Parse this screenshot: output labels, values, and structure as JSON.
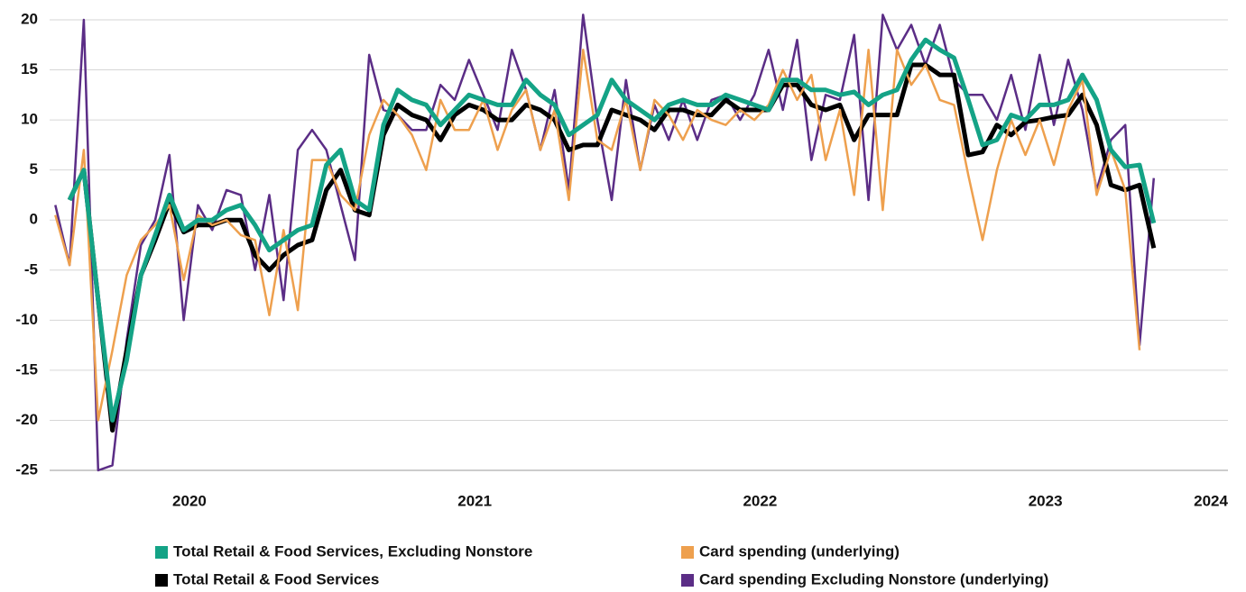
{
  "chart_data": {
    "type": "line",
    "x": [
      2020.03,
      2020.08,
      2020.13,
      2020.18,
      2020.23,
      2020.28,
      2020.33,
      2020.38,
      2020.43,
      2020.48,
      2020.53,
      2020.58,
      2020.63,
      2020.68,
      2020.73,
      2020.78,
      2020.83,
      2020.88,
      2020.93,
      2020.98,
      2021.03,
      2021.08,
      2021.13,
      2021.18,
      2021.23,
      2021.28,
      2021.33,
      2021.38,
      2021.43,
      2021.48,
      2021.53,
      2021.58,
      2021.63,
      2021.68,
      2021.73,
      2021.78,
      2021.83,
      2021.88,
      2021.93,
      2021.98,
      2022.03,
      2022.08,
      2022.13,
      2022.18,
      2022.23,
      2022.28,
      2022.33,
      2022.38,
      2022.43,
      2022.48,
      2022.53,
      2022.58,
      2022.63,
      2022.68,
      2022.73,
      2022.78,
      2022.83,
      2022.88,
      2022.93,
      2022.98,
      2023.03,
      2023.08,
      2023.13,
      2023.18,
      2023.23,
      2023.28,
      2023.33,
      2023.38,
      2023.43,
      2023.48,
      2023.53,
      2023.58,
      2023.63,
      2023.68,
      2023.73,
      2023.78,
      2023.83,
      2023.88
    ],
    "xlim": [
      2020.01,
      2024.14
    ],
    "xticks": [
      {
        "value": 2020.5,
        "label": "2020"
      },
      {
        "value": 2021.5,
        "label": "2021"
      },
      {
        "value": 2022.5,
        "label": "2022"
      },
      {
        "value": 2023.5,
        "label": "2023"
      },
      {
        "value": 2024.08,
        "label": "2024"
      }
    ],
    "ylim": [
      -25,
      20
    ],
    "yticks": [
      20,
      15,
      10,
      5,
      0,
      -5,
      -10,
      -15,
      -20,
      -25
    ],
    "grid": true,
    "series": [
      {
        "name": "Total Retail & Food Services, Excluding Nonstore",
        "color": "#14a386",
        "values": [
          null,
          2,
          5,
          -8,
          -20,
          -14,
          -5.5,
          -1.5,
          2.5,
          -1,
          0,
          0,
          1,
          1.5,
          -0.5,
          -3,
          -2,
          -1,
          -0.5,
          5.5,
          7,
          2,
          1,
          9.5,
          13,
          12,
          11.5,
          9.5,
          11,
          12.5,
          12,
          11.5,
          11.5,
          14,
          12.5,
          11.5,
          8.5,
          9.5,
          10.5,
          14,
          12,
          11,
          10,
          11.5,
          12,
          11.5,
          11.5,
          12.5,
          12,
          11.5,
          11,
          14,
          14,
          13,
          13,
          12.5,
          12.8,
          11.5,
          12.5,
          13,
          16,
          18,
          17,
          16.2,
          12,
          7.5,
          8,
          10.5,
          10,
          11.5,
          11.5,
          12,
          14.5,
          12,
          7,
          5.3,
          5.5,
          -0.3
        ]
      },
      {
        "name": "Card spending (underlying)",
        "color": "#eea04e",
        "values": [
          0.5,
          -4.5,
          7,
          -20,
          -13,
          -5.5,
          -2,
          -0.5,
          1.5,
          -6,
          0.5,
          -0.5,
          0,
          -1.5,
          -2,
          -9.5,
          -1,
          -9,
          6,
          6,
          2.5,
          1,
          8.5,
          12,
          10.5,
          8.5,
          5,
          12,
          9,
          9,
          12,
          7,
          11,
          13,
          7,
          11,
          2,
          17,
          8,
          7,
          12,
          5,
          12,
          10.5,
          8,
          11,
          10,
          9.5,
          11,
          10,
          11.5,
          15,
          12,
          14.5,
          6,
          11,
          2.5,
          17,
          1,
          17,
          13.5,
          15.5,
          12,
          11.5,
          4.5,
          -2,
          5,
          10,
          6.5,
          10,
          5.5,
          11,
          14,
          2.5,
          7,
          3,
          -13,
          null
        ]
      },
      {
        "name": "Total Retail & Food Services",
        "color": "#000000",
        "values": [
          null,
          2,
          5,
          -8,
          -21,
          -13,
          -5.5,
          -2,
          1.8,
          -1.2,
          -0.5,
          -0.5,
          0,
          0,
          -3.5,
          -5,
          -3.5,
          -2.5,
          -2,
          3,
          5,
          1,
          0.5,
          8.5,
          11.5,
          10.5,
          10,
          8,
          10.5,
          11.5,
          11,
          10,
          10,
          11.5,
          11,
          10,
          7,
          7.5,
          7.5,
          11,
          10.5,
          10,
          9,
          11,
          11,
          10.5,
          10.5,
          12,
          11,
          11,
          11,
          13.5,
          13.5,
          11.5,
          11,
          11.5,
          8,
          10.5,
          10.5,
          10.5,
          15.5,
          15.5,
          14.5,
          14.5,
          6.5,
          6.8,
          9.5,
          8.5,
          9.8,
          10,
          10.3,
          10.5,
          12.5,
          9.5,
          3.5,
          3,
          3.5,
          -2.8
        ]
      },
      {
        "name": "Card spending Excluding Nonstore (underlying)",
        "color": "#5b2d86",
        "values": [
          1.5,
          -4.5,
          20,
          -25,
          -24.5,
          -12,
          -2.5,
          0,
          6.5,
          -10,
          1.5,
          -1,
          3,
          2.5,
          -5,
          2.5,
          -8,
          7,
          9,
          7,
          1.5,
          -4,
          16.5,
          11,
          10.5,
          9,
          9,
          13.5,
          12,
          16,
          12.5,
          9,
          17,
          13,
          7,
          13,
          3,
          20.5,
          10,
          2,
          14,
          5,
          11.5,
          8,
          12,
          8,
          12,
          12.5,
          10,
          12.5,
          17,
          11,
          18,
          6,
          12.5,
          12,
          18.5,
          2,
          20.5,
          17,
          19.5,
          15.5,
          19.5,
          14,
          12.5,
          12.5,
          10,
          14.5,
          9,
          16.5,
          9.5,
          16,
          11,
          3,
          8,
          9.5,
          -12.5,
          4.2
        ]
      }
    ]
  }
}
